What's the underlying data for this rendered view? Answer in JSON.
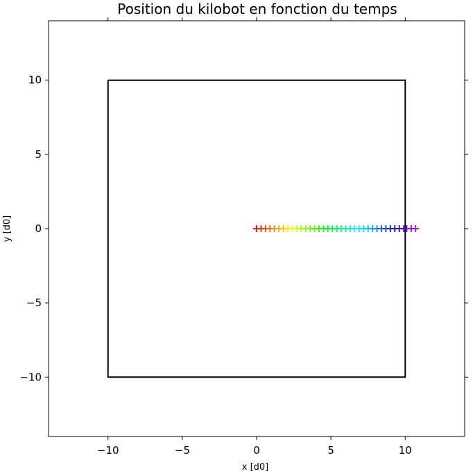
{
  "chart_data": {
    "type": "scatter",
    "title": "Position du kilobot en fonction du temps",
    "xlabel": "x [d0]",
    "ylabel": "y [d0]",
    "xlim": [
      -14,
      14
    ],
    "ylim": [
      -14,
      14
    ],
    "xticks": [
      -10,
      -5,
      0,
      5,
      10
    ],
    "yticks": [
      -10,
      -5,
      0,
      5,
      10
    ],
    "xtick_labels": [
      "−10",
      "−5",
      "0",
      "5",
      "10"
    ],
    "ytick_labels": [
      "−10",
      "−5",
      "0",
      "5",
      "10"
    ],
    "grid": false,
    "boundary": {
      "x": [
        -10,
        10,
        10,
        -10,
        -10
      ],
      "y": [
        10,
        10,
        -10,
        -10,
        10
      ],
      "color": "#000000"
    },
    "series": [
      {
        "marker": "+",
        "colormap": "rainbow-reversed",
        "x": [
          0.0,
          0.3,
          0.6,
          0.9,
          1.2,
          1.5,
          1.8,
          2.1,
          2.4,
          2.7,
          3.0,
          3.3,
          3.6,
          3.9,
          4.2,
          4.5,
          4.8,
          5.1,
          5.4,
          5.7,
          6.0,
          6.3,
          6.6,
          6.9,
          7.2,
          7.5,
          7.8,
          8.1,
          8.4,
          8.7,
          9.0,
          9.3,
          9.6,
          9.9,
          10.1,
          10.4,
          10.7
        ],
        "y": [
          0,
          0,
          0,
          0,
          0,
          0,
          0,
          0,
          0,
          0,
          0,
          0,
          0,
          0,
          0,
          0,
          0,
          0,
          0,
          0,
          0,
          0,
          0,
          0,
          0,
          0,
          0,
          0,
          0,
          0,
          0,
          0,
          0,
          0,
          0,
          0,
          0
        ]
      }
    ]
  }
}
